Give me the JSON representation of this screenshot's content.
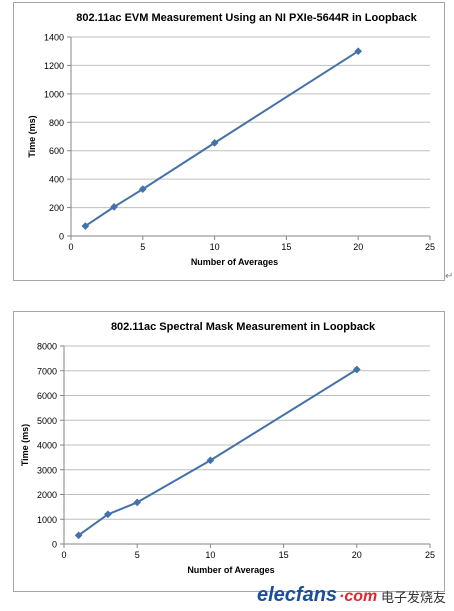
{
  "chart_data": [
    {
      "type": "line",
      "title": "802.11ac EVM Measurement Using an NI PXIe-5644R in Loopback",
      "xlabel": "Number of Averages",
      "ylabel": "Time (ms)",
      "xlim": [
        0,
        25
      ],
      "ylim": [
        0,
        1400
      ],
      "xticks": [
        0,
        5,
        10,
        15,
        20,
        25
      ],
      "yticks": [
        0,
        200,
        400,
        600,
        800,
        1000,
        1200,
        1400
      ],
      "grid": true,
      "series": [
        {
          "x": [
            1,
            3,
            5,
            10,
            20
          ],
          "values": [
            70,
            205,
            330,
            655,
            1300
          ],
          "color": "#4472a8"
        }
      ]
    },
    {
      "type": "line",
      "title": "802.11ac Spectral Mask Measurement in Loopback",
      "xlabel": "Number of Averages",
      "ylabel": "Time (ms)",
      "xlim": [
        0,
        25
      ],
      "ylim": [
        0,
        8000
      ],
      "xticks": [
        0,
        5,
        10,
        15,
        20,
        25
      ],
      "yticks": [
        0,
        1000,
        2000,
        3000,
        4000,
        5000,
        6000,
        7000,
        8000
      ],
      "grid": true,
      "series": [
        {
          "x": [
            1,
            3,
            5,
            10,
            20
          ],
          "values": [
            350,
            1200,
            1680,
            3380,
            7050
          ],
          "color": "#4472a8"
        }
      ]
    }
  ],
  "para_mark": "↵",
  "watermark": {
    "logo_text": "elecfans",
    "logo_suffix": "·com",
    "chinese_text": "电子发烧友"
  }
}
